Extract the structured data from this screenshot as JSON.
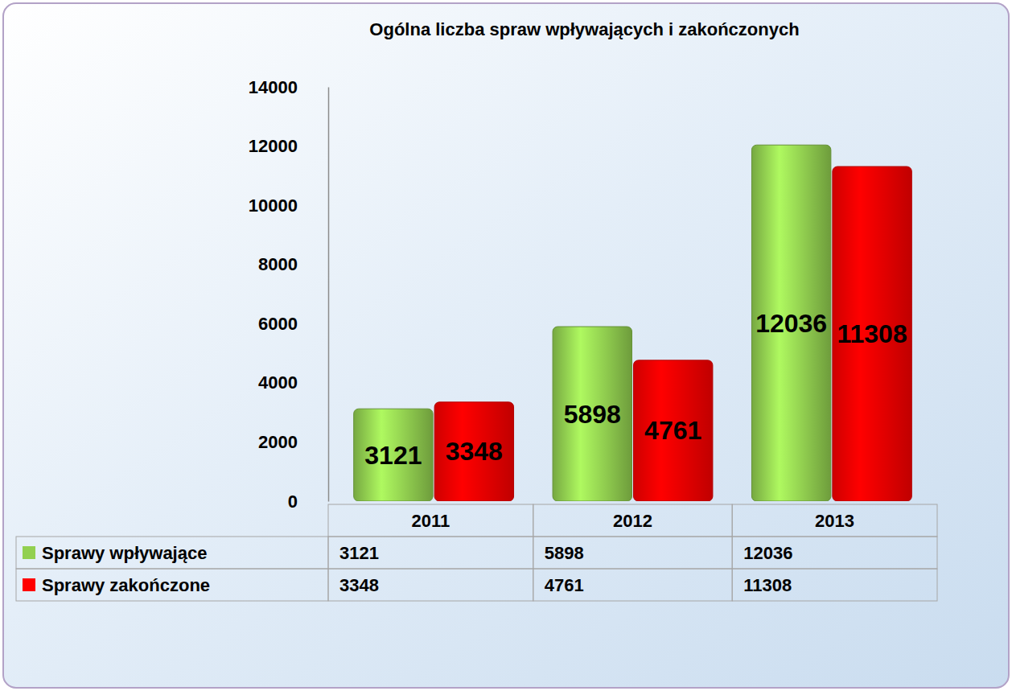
{
  "chart_data": {
    "type": "bar",
    "title": "Ogólna liczba spraw wpływających i zakończonych",
    "categories": [
      "2011",
      "2012",
      "2013"
    ],
    "series": [
      {
        "name": "Sprawy wpływające",
        "color": "#92d050",
        "values": [
          3121,
          5898,
          12036
        ]
      },
      {
        "name": "Sprawy zakończone",
        "color": "#ff0000",
        "values": [
          3348,
          4761,
          11308
        ]
      }
    ],
    "ylim": [
      0,
      14000
    ],
    "yticks": [
      0,
      2000,
      4000,
      6000,
      8000,
      10000,
      12000,
      14000
    ],
    "grid": false,
    "legend": "bottom",
    "data_labels": true
  }
}
